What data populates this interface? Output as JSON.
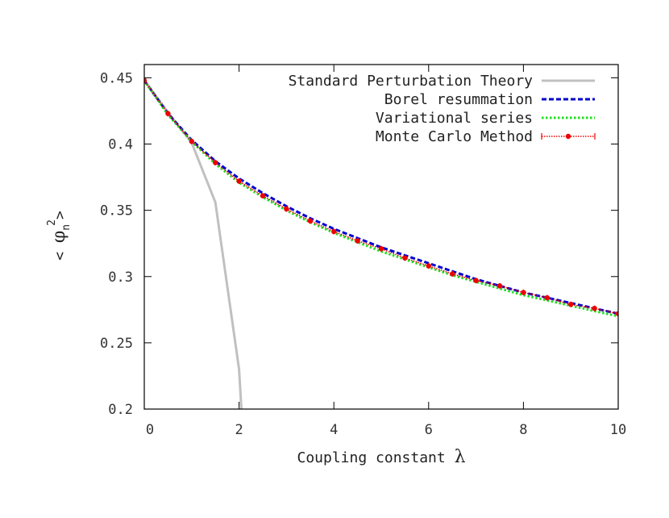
{
  "chart_data": {
    "type": "line",
    "title": "",
    "xlabel_text": "Coupling constant ",
    "xlabel_symbol": "λ",
    "ylabel": {
      "left": "< ",
      "symbol": "φ",
      "subscript": "n",
      "superscript": "2",
      "right": ">"
    },
    "xlim": [
      0,
      10
    ],
    "ylim": [
      0.2,
      0.46
    ],
    "xticks": [
      0,
      2,
      4,
      6,
      8,
      10
    ],
    "xtick_labels": [
      "0",
      "2",
      "4",
      "6",
      "8",
      "10"
    ],
    "yticks": [
      0.2,
      0.25,
      0.3,
      0.35,
      0.4,
      0.45
    ],
    "ytick_labels": [
      "0.2",
      "0.25",
      "0.3",
      "0.35",
      "0.4",
      "0.45"
    ],
    "grid": false,
    "legend_position": "top-right",
    "series": [
      {
        "name": "Standard Perturbation Theory",
        "style": "solid",
        "color": "#c0c0c0",
        "x": [
          0,
          0.5,
          1.0,
          1.5,
          2.0,
          2.05
        ],
        "y": [
          0.448,
          0.424,
          0.401,
          0.356,
          0.23,
          0.2
        ]
      },
      {
        "name": "Borel resummation",
        "style": "dashed",
        "color": "#0000cc",
        "x": [
          0,
          0.5,
          1.0,
          1.5,
          2.0,
          2.5,
          3.0,
          3.5,
          4.0,
          4.5,
          5.0,
          5.5,
          6.0,
          6.5,
          7.0,
          7.5,
          8.0,
          8.5,
          9.0,
          9.5,
          10.0
        ],
        "y": [
          0.448,
          0.423,
          0.403,
          0.387,
          0.374,
          0.363,
          0.353,
          0.344,
          0.336,
          0.329,
          0.322,
          0.316,
          0.31,
          0.304,
          0.298,
          0.293,
          0.288,
          0.284,
          0.28,
          0.276,
          0.272
        ]
      },
      {
        "name": "Variational series",
        "style": "dotted",
        "color": "#22dd22",
        "x": [
          0,
          0.5,
          1.0,
          1.5,
          2.0,
          2.5,
          3.0,
          3.5,
          4.0,
          4.5,
          5.0,
          5.5,
          6.0,
          6.5,
          7.0,
          7.5,
          8.0,
          8.5,
          9.0,
          9.5,
          10.0
        ],
        "y": [
          0.448,
          0.422,
          0.402,
          0.385,
          0.371,
          0.36,
          0.35,
          0.341,
          0.333,
          0.326,
          0.319,
          0.313,
          0.307,
          0.301,
          0.296,
          0.291,
          0.286,
          0.282,
          0.278,
          0.274,
          0.27
        ]
      },
      {
        "name": "Monte Carlo Method",
        "style": "points",
        "color": "#ee0000",
        "x": [
          0,
          0.5,
          1.0,
          1.5,
          2.0,
          2.5,
          3.0,
          3.5,
          4.0,
          4.5,
          5.0,
          5.5,
          6.0,
          6.5,
          7.0,
          7.5,
          8.0,
          8.5,
          9.0,
          9.5,
          10.0
        ],
        "y": [
          0.448,
          0.423,
          0.402,
          0.386,
          0.372,
          0.361,
          0.351,
          0.342,
          0.334,
          0.327,
          0.321,
          0.314,
          0.308,
          0.302,
          0.297,
          0.293,
          0.288,
          0.284,
          0.279,
          0.276,
          0.272
        ]
      }
    ]
  }
}
